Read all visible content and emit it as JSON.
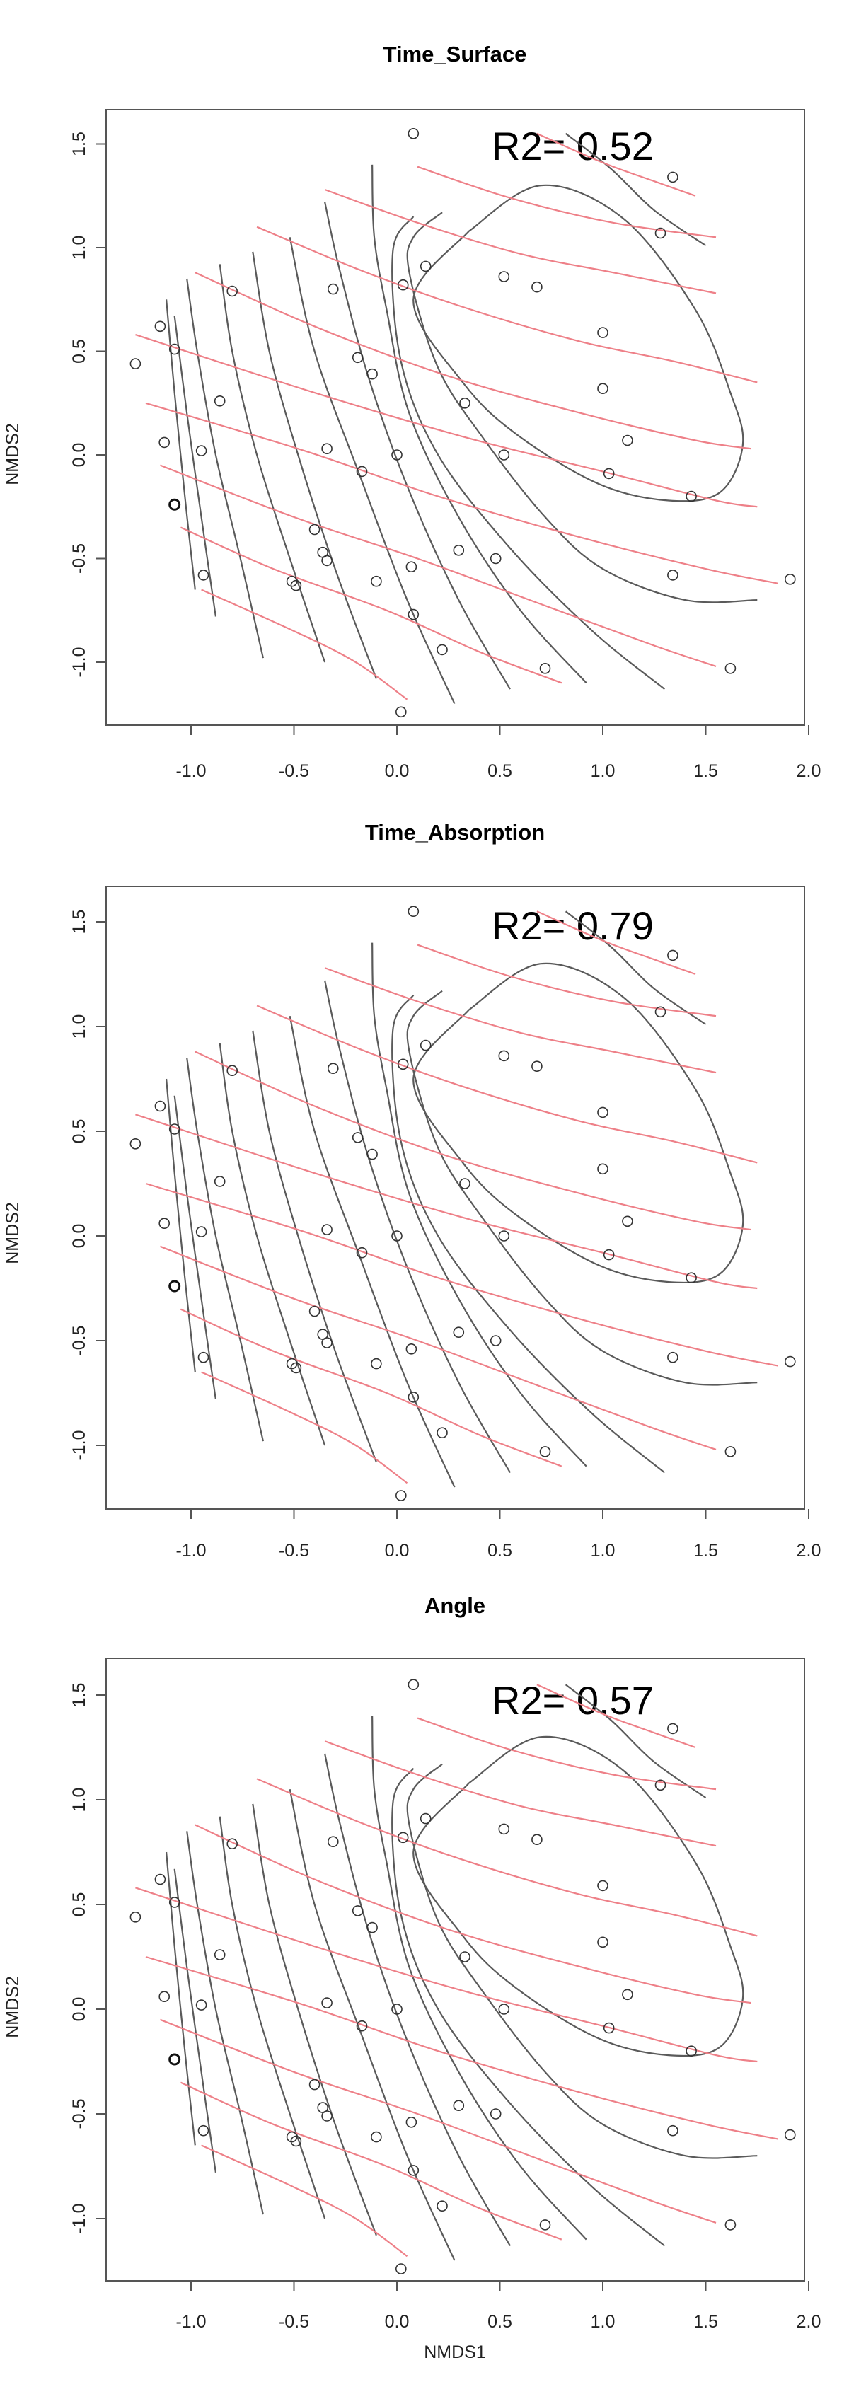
{
  "figure": {
    "xlabel": "NMDS1",
    "ylabel": "NMDS2"
  },
  "chart_data": [
    {
      "type": "scatter",
      "title": "Time_Surface",
      "annotation": "R2= 0.52",
      "xlabel": "",
      "ylabel": "NMDS2",
      "xlim": [
        -1.3,
        2.0
      ],
      "ylim": [
        -1.3,
        1.6
      ],
      "xticks": [
        "-1.0",
        "-0.5",
        "0.0",
        "0.5",
        "1.0",
        "1.5",
        "2.0"
      ],
      "yticks": [
        "-1.0",
        "-0.5",
        "0.0",
        "0.5",
        "1.0",
        "1.5"
      ],
      "grid": false,
      "contour_colors": {
        "gray": "#5a5a5a",
        "pink": "#ee8088"
      }
    },
    {
      "type": "scatter",
      "title": "Time_Absorption",
      "annotation": "R2= 0.79",
      "xlabel": "",
      "ylabel": "NMDS2",
      "xlim": [
        -1.3,
        2.0
      ],
      "ylim": [
        -1.3,
        1.6
      ],
      "xticks": [
        "-1.0",
        "-0.5",
        "0.0",
        "0.5",
        "1.0",
        "1.5",
        "2.0"
      ],
      "yticks": [
        "-1.0",
        "-0.5",
        "0.0",
        "0.5",
        "1.0",
        "1.5"
      ],
      "grid": false,
      "contour_colors": {
        "gray": "#5a5a5a",
        "pink": "#ee8088"
      }
    },
    {
      "type": "scatter",
      "title": "Angle",
      "annotation": "R2= 0.57",
      "xlabel": "NMDS1",
      "ylabel": "NMDS2",
      "xlim": [
        -1.3,
        2.0
      ],
      "ylim": [
        -1.3,
        1.6
      ],
      "xticks": [
        "-1.0",
        "-0.5",
        "0.0",
        "0.5",
        "1.0",
        "1.5",
        "2.0"
      ],
      "yticks": [
        "-1.0",
        "-0.5",
        "0.0",
        "0.5",
        "1.0",
        "1.5"
      ],
      "grid": false,
      "contour_colors": {
        "gray": "#5a5a5a",
        "pink": "#ee8088"
      }
    }
  ],
  "points": [
    {
      "x": -1.27,
      "y": 0.44
    },
    {
      "x": -1.15,
      "y": 0.62
    },
    {
      "x": -1.13,
      "y": 0.06
    },
    {
      "x": -1.08,
      "y": 0.51
    },
    {
      "x": -1.08,
      "y": -0.24,
      "bold": true
    },
    {
      "x": -0.95,
      "y": 0.02
    },
    {
      "x": -0.94,
      "y": -0.58
    },
    {
      "x": -0.86,
      "y": 0.26
    },
    {
      "x": -0.8,
      "y": 0.79
    },
    {
      "x": -0.51,
      "y": -0.61
    },
    {
      "x": -0.49,
      "y": -0.63
    },
    {
      "x": -0.4,
      "y": -0.36
    },
    {
      "x": -0.36,
      "y": -0.47
    },
    {
      "x": -0.34,
      "y": -0.51
    },
    {
      "x": -0.34,
      "y": 0.03
    },
    {
      "x": -0.31,
      "y": 0.8
    },
    {
      "x": -0.19,
      "y": 0.47
    },
    {
      "x": -0.17,
      "y": -0.08
    },
    {
      "x": -0.12,
      "y": 0.39
    },
    {
      "x": -0.1,
      "y": -0.61
    },
    {
      "x": 0.0,
      "y": 0.0
    },
    {
      "x": 0.02,
      "y": -1.24
    },
    {
      "x": 0.03,
      "y": 0.82
    },
    {
      "x": 0.07,
      "y": -0.54
    },
    {
      "x": 0.08,
      "y": -0.77
    },
    {
      "x": 0.08,
      "y": 1.55
    },
    {
      "x": 0.14,
      "y": 0.91
    },
    {
      "x": 0.22,
      "y": -0.94
    },
    {
      "x": 0.3,
      "y": -0.46
    },
    {
      "x": 0.33,
      "y": 0.25
    },
    {
      "x": 0.48,
      "y": -0.5
    },
    {
      "x": 0.52,
      "y": 0.0
    },
    {
      "x": 0.52,
      "y": 0.86
    },
    {
      "x": 0.68,
      "y": 0.81
    },
    {
      "x": 0.72,
      "y": -1.03
    },
    {
      "x": 1.0,
      "y": 0.59
    },
    {
      "x": 1.0,
      "y": 0.32
    },
    {
      "x": 1.03,
      "y": -0.09
    },
    {
      "x": 1.12,
      "y": 0.07
    },
    {
      "x": 1.28,
      "y": 1.07
    },
    {
      "x": 1.34,
      "y": 1.34
    },
    {
      "x": 1.34,
      "y": -0.58
    },
    {
      "x": 1.43,
      "y": -0.2
    },
    {
      "x": 1.62,
      "y": -1.03
    },
    {
      "x": 1.91,
      "y": -0.6
    }
  ],
  "contours": {
    "gray": [
      [
        [
          -0.98,
          -0.65
        ],
        [
          -1.03,
          -0.2
        ],
        [
          -1.08,
          0.3
        ],
        [
          -1.12,
          0.75
        ]
      ],
      [
        [
          -0.88,
          -0.78
        ],
        [
          -0.95,
          -0.3
        ],
        [
          -1.02,
          0.2
        ],
        [
          -1.08,
          0.67
        ]
      ],
      [
        [
          -0.65,
          -0.98
        ],
        [
          -0.76,
          -0.5
        ],
        [
          -0.88,
          0.0
        ],
        [
          -0.97,
          0.5
        ],
        [
          -1.02,
          0.85
        ]
      ],
      [
        [
          -0.35,
          -1.0
        ],
        [
          -0.52,
          -0.5
        ],
        [
          -0.68,
          0.0
        ],
        [
          -0.8,
          0.5
        ],
        [
          -0.86,
          0.92
        ]
      ],
      [
        [
          -0.1,
          -1.08
        ],
        [
          -0.3,
          -0.55
        ],
        [
          -0.48,
          0.0
        ],
        [
          -0.62,
          0.5
        ],
        [
          -0.7,
          0.98
        ]
      ],
      [
        [
          0.28,
          -1.2
        ],
        [
          0.05,
          -0.7
        ],
        [
          -0.18,
          -0.1
        ],
        [
          -0.4,
          0.5
        ],
        [
          -0.52,
          1.05
        ]
      ],
      [
        [
          0.55,
          -1.13
        ],
        [
          0.3,
          -0.7
        ],
        [
          0.05,
          -0.15
        ],
        [
          -0.14,
          0.38
        ],
        [
          -0.28,
          0.9
        ],
        [
          -0.35,
          1.22
        ]
      ],
      [
        [
          0.92,
          -1.1
        ],
        [
          0.6,
          -0.75
        ],
        [
          0.3,
          -0.3
        ],
        [
          0.06,
          0.2
        ],
        [
          -0.05,
          0.7
        ],
        [
          -0.11,
          1.05
        ],
        [
          -0.12,
          1.4
        ]
      ],
      [
        [
          1.3,
          -1.13
        ],
        [
          0.95,
          -0.85
        ],
        [
          0.55,
          -0.45
        ],
        [
          0.2,
          0.0
        ],
        [
          0.02,
          0.45
        ],
        [
          -0.02,
          0.98
        ],
        [
          0.08,
          1.15
        ]
      ],
      [
        [
          1.75,
          -0.7
        ],
        [
          1.4,
          -0.7
        ],
        [
          1.0,
          -0.55
        ],
        [
          0.72,
          -0.3
        ],
        [
          0.42,
          0.08
        ],
        [
          0.2,
          0.42
        ],
        [
          0.06,
          0.88
        ],
        [
          0.08,
          1.05
        ],
        [
          0.22,
          1.17
        ]
      ],
      [
        [
          1.5,
          1.01
        ],
        [
          1.25,
          1.18
        ],
        [
          1.04,
          1.38
        ],
        [
          0.82,
          1.55
        ]
      ],
      [
        [
          0.35,
          1.08
        ],
        [
          0.7,
          1.3
        ],
        [
          1.1,
          1.14
        ],
        [
          1.45,
          0.7
        ],
        [
          1.62,
          0.3
        ],
        [
          1.68,
          0.05
        ],
        [
          1.57,
          -0.18
        ],
        [
          1.32,
          -0.22
        ],
        [
          0.98,
          -0.14
        ],
        [
          0.58,
          0.1
        ],
        [
          0.32,
          0.35
        ],
        [
          0.08,
          0.75
        ],
        [
          0.35,
          1.08
        ]
      ]
    ],
    "pink": [
      [
        [
          -0.95,
          -0.65
        ],
        [
          -0.5,
          -0.85
        ],
        [
          -0.2,
          -1.0
        ],
        [
          0.05,
          -1.18
        ]
      ],
      [
        [
          -1.05,
          -0.35
        ],
        [
          -0.6,
          -0.55
        ],
        [
          -0.05,
          -0.75
        ],
        [
          0.4,
          -0.95
        ],
        [
          0.8,
          -1.1
        ]
      ],
      [
        [
          -1.15,
          -0.05
        ],
        [
          -0.5,
          -0.3
        ],
        [
          0.1,
          -0.5
        ],
        [
          0.7,
          -0.72
        ],
        [
          1.25,
          -0.92
        ],
        [
          1.55,
          -1.02
        ]
      ],
      [
        [
          -1.22,
          0.25
        ],
        [
          -0.45,
          0.02
        ],
        [
          0.2,
          -0.2
        ],
        [
          0.9,
          -0.4
        ],
        [
          1.5,
          -0.55
        ],
        [
          1.85,
          -0.62
        ]
      ],
      [
        [
          -1.27,
          0.58
        ],
        [
          -0.4,
          0.3
        ],
        [
          0.35,
          0.08
        ],
        [
          1.0,
          -0.08
        ],
        [
          1.55,
          -0.22
        ],
        [
          1.75,
          -0.25
        ]
      ],
      [
        [
          -0.98,
          0.88
        ],
        [
          -0.4,
          0.62
        ],
        [
          0.25,
          0.38
        ],
        [
          0.9,
          0.2
        ],
        [
          1.45,
          0.07
        ],
        [
          1.72,
          0.03
        ]
      ],
      [
        [
          -0.68,
          1.1
        ],
        [
          -0.2,
          0.9
        ],
        [
          0.3,
          0.72
        ],
        [
          0.88,
          0.55
        ],
        [
          1.35,
          0.45
        ],
        [
          1.75,
          0.35
        ]
      ],
      [
        [
          -0.35,
          1.28
        ],
        [
          0.1,
          1.12
        ],
        [
          0.6,
          0.97
        ],
        [
          1.05,
          0.88
        ],
        [
          1.55,
          0.78
        ]
      ],
      [
        [
          0.1,
          1.39
        ],
        [
          0.55,
          1.24
        ],
        [
          1.05,
          1.12
        ],
        [
          1.55,
          1.05
        ]
      ],
      [
        [
          0.68,
          1.55
        ],
        [
          1.0,
          1.41
        ],
        [
          1.25,
          1.32
        ],
        [
          1.45,
          1.25
        ]
      ]
    ]
  }
}
